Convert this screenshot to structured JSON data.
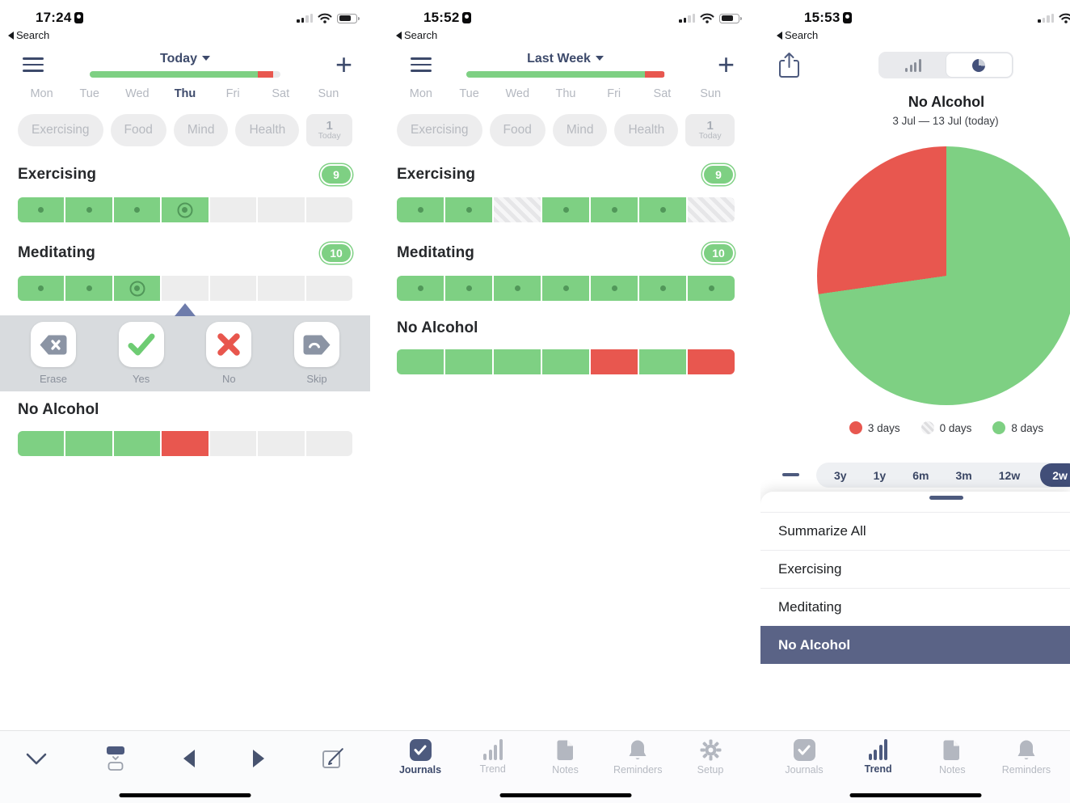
{
  "colors": {
    "green": "#7ed083",
    "red": "#e8574f",
    "slate": "#4d5a7e",
    "selected_row": "#5a6386"
  },
  "screens": {
    "today": {
      "status": {
        "time": "17:24",
        "back_label": "Search"
      },
      "nav": {
        "period_label": "Today",
        "add_label": "+"
      },
      "progress": {
        "green_pct": 88,
        "red_pct": 8
      },
      "days": [
        "Mon",
        "Tue",
        "Wed",
        "Thu",
        "Fri",
        "Sat",
        "Sun"
      ],
      "active_day": "Thu",
      "filter_chips": [
        "Exercising",
        "Food",
        "Mind",
        "Health"
      ],
      "today_chip": {
        "count": "1",
        "label": "Today"
      },
      "habits": [
        {
          "name": "Exercising",
          "badge": "9",
          "cells": [
            "dot",
            "dot",
            "dot",
            "target",
            "empty",
            "empty",
            "empty"
          ]
        },
        {
          "name": "Meditating",
          "badge": "10",
          "cells": [
            "dot",
            "dot",
            "target",
            "empty",
            "empty",
            "empty",
            "empty"
          ]
        },
        {
          "name": "No Alcohol",
          "badge": "",
          "cells": [
            "green",
            "green",
            "green",
            "red",
            "empty",
            "empty",
            "empty"
          ]
        }
      ],
      "action_sheet": {
        "buttons": [
          {
            "label": "Erase",
            "icon": "backspace-icon"
          },
          {
            "label": "Yes",
            "icon": "check-icon"
          },
          {
            "label": "No",
            "icon": "x-icon"
          },
          {
            "label": "Skip",
            "icon": "skip-tag-icon"
          }
        ]
      }
    },
    "week": {
      "status": {
        "time": "15:52",
        "back_label": "Search"
      },
      "nav": {
        "period_label": "Last Week",
        "add_label": "+"
      },
      "progress": {
        "green_pct": 90,
        "red_pct": 10
      },
      "days": [
        "Mon",
        "Tue",
        "Wed",
        "Thu",
        "Fri",
        "Sat",
        "Sun"
      ],
      "filter_chips": [
        "Exercising",
        "Food",
        "Mind",
        "Health"
      ],
      "today_chip": {
        "count": "1",
        "label": "Today"
      },
      "habits": [
        {
          "name": "Exercising",
          "badge": "9",
          "cells": [
            "dot",
            "dot",
            "skip",
            "dot",
            "dot",
            "dot",
            "skip"
          ]
        },
        {
          "name": "Meditating",
          "badge": "10",
          "cells": [
            "dot",
            "dot",
            "dot",
            "dot",
            "dot",
            "dot",
            "dot"
          ]
        },
        {
          "name": "No Alcohol",
          "badge": "",
          "cells": [
            "green",
            "green",
            "green",
            "green",
            "red",
            "green",
            "red"
          ]
        }
      ],
      "tab_bar": {
        "items": [
          {
            "label": "Journals",
            "selected": true
          },
          {
            "label": "Trend"
          },
          {
            "label": "Notes"
          },
          {
            "label": "Reminders"
          },
          {
            "label": "Setup"
          }
        ]
      }
    },
    "trend": {
      "status": {
        "time": "15:53",
        "back_label": "Search"
      },
      "title": "No Alcohol",
      "subtitle": "3 Jul — 13 Jul (today)",
      "chart_data": {
        "type": "pie",
        "title": "No Alcohol",
        "subtitle": "3 Jul — 13 Jul (today)",
        "slices": [
          {
            "label": "3 days",
            "value": 3,
            "color": "#e8574f"
          },
          {
            "label": "0 days",
            "value": 0,
            "color": "hatch"
          },
          {
            "label": "8 days",
            "value": 8,
            "color": "#7ed083"
          }
        ],
        "legend_position": "bottom"
      },
      "range_chips": {
        "options": [
          "3y",
          "1y",
          "6m",
          "3m",
          "12w",
          "2w"
        ],
        "selected": "2w"
      },
      "list": {
        "items": [
          "Summarize All",
          "Exercising",
          "Meditating",
          "No Alcohol"
        ],
        "selected": "No Alcohol"
      },
      "tab_bar": {
        "items": [
          {
            "label": "Journals"
          },
          {
            "label": "Trend",
            "selected": true
          },
          {
            "label": "Notes"
          },
          {
            "label": "Reminders"
          }
        ]
      }
    }
  }
}
